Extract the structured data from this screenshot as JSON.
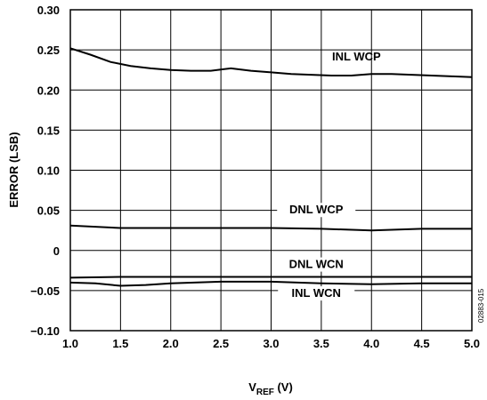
{
  "chart_data": {
    "type": "line",
    "xlabel_main": "V",
    "xlabel_sub": "REF",
    "xlabel_unit": " (V)",
    "ylabel": "ERROR (LSB)",
    "xlim": [
      1.0,
      5.0
    ],
    "ylim": [
      -0.1,
      0.3
    ],
    "x_ticks": [
      "1.0",
      "1.5",
      "2.0",
      "2.5",
      "3.0",
      "3.5",
      "4.0",
      "4.5",
      "5.0"
    ],
    "x_tick_values": [
      1.0,
      1.5,
      2.0,
      2.5,
      3.0,
      3.5,
      4.0,
      4.5,
      5.0
    ],
    "y_ticks": [
      "0.30",
      "0.25",
      "0.20",
      "0.15",
      "0.10",
      "0.05",
      "0",
      "−0.05",
      "−0.10"
    ],
    "y_tick_values": [
      0.3,
      0.25,
      0.2,
      0.15,
      0.1,
      0.05,
      0.0,
      -0.05,
      -0.1
    ],
    "grid": true,
    "side_code": "02883-015",
    "series": [
      {
        "name": "INL WCP",
        "x": [
          1.0,
          1.2,
          1.4,
          1.6,
          1.8,
          2.0,
          2.2,
          2.4,
          2.6,
          2.8,
          3.0,
          3.2,
          3.4,
          3.6,
          3.8,
          4.0,
          4.2,
          4.4,
          4.6,
          4.8,
          5.0
        ],
        "y": [
          0.252,
          0.244,
          0.235,
          0.23,
          0.227,
          0.225,
          0.224,
          0.224,
          0.227,
          0.224,
          0.222,
          0.22,
          0.219,
          0.218,
          0.218,
          0.22,
          0.22,
          0.219,
          0.218,
          0.217,
          0.216
        ]
      },
      {
        "name": "DNL WCP",
        "x": [
          1.0,
          1.5,
          2.0,
          2.5,
          3.0,
          3.5,
          4.0,
          4.5,
          5.0
        ],
        "y": [
          0.031,
          0.028,
          0.028,
          0.028,
          0.028,
          0.027,
          0.025,
          0.027,
          0.027
        ]
      },
      {
        "name": "DNL WCN",
        "x": [
          1.0,
          1.5,
          2.0,
          2.5,
          3.0,
          3.5,
          4.0,
          4.5,
          5.0
        ],
        "y": [
          -0.034,
          -0.033,
          -0.033,
          -0.033,
          -0.033,
          -0.033,
          -0.033,
          -0.033,
          -0.033
        ]
      },
      {
        "name": "INL WCN",
        "x": [
          1.0,
          1.25,
          1.5,
          1.75,
          2.0,
          2.5,
          3.0,
          3.5,
          4.0,
          4.5,
          5.0
        ],
        "y": [
          -0.04,
          -0.041,
          -0.044,
          -0.043,
          -0.041,
          -0.039,
          -0.039,
          -0.041,
          -0.042,
          -0.041,
          -0.041
        ]
      }
    ]
  }
}
